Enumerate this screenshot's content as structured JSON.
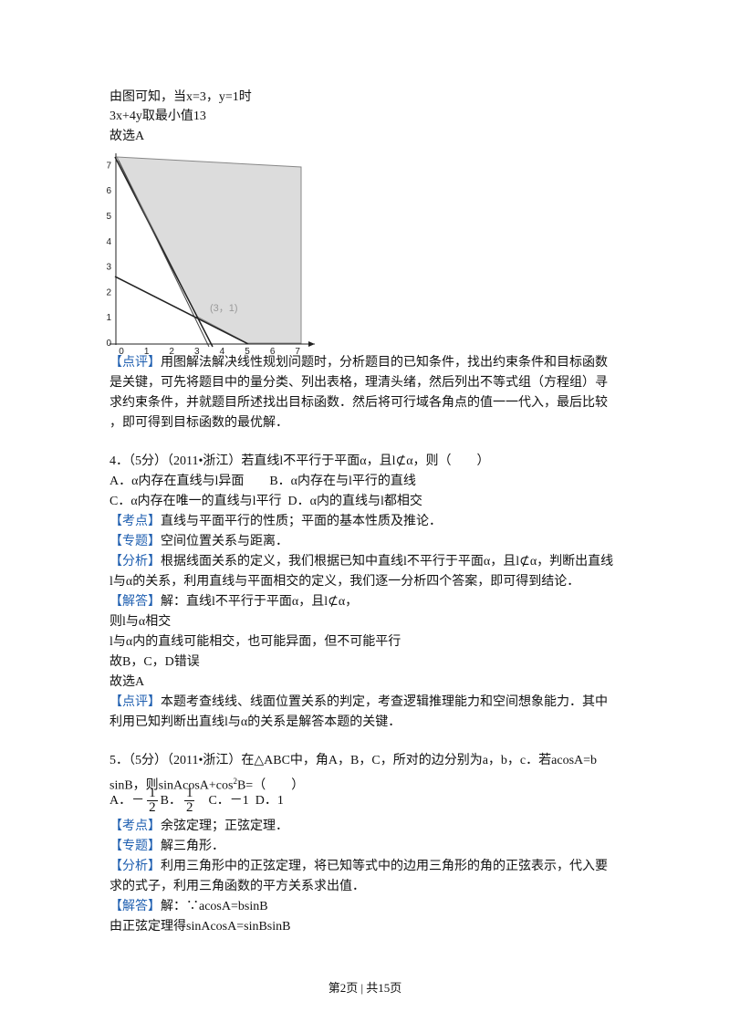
{
  "intro": [
    "由图可知，当x=3，y=1时",
    "3x+4y取最小值13",
    "故选A"
  ],
  "figure": {
    "x_ticks": [
      0,
      1,
      2,
      3,
      4,
      5,
      6,
      7
    ],
    "y_ticks": [
      0,
      1,
      2,
      3,
      4,
      5,
      6,
      7
    ],
    "point_label": "(3，1)"
  },
  "comment3": {
    "tag": "【点评】",
    "lines": [
      "用图解法解决线性规划问题时，分析题目的已知条件，找出约束条件和目标函数",
      "是关键，可先将题目中的量分类、列出表格，理清头绪，然后列出不等式组（方程组）寻",
      "求约束条件，并就题目所述找出目标函数．然后将可行域各角点的值一一代入，最后比较",
      "，即可得到目标函数的最优解．"
    ]
  },
  "q4": {
    "stem": "4．（5分）（2011•浙江）若直线l不平行于平面α，且l⊄α，则（　　）",
    "options": [
      "A．α内存在直线与l异面　　B．α内存在与l平行的直线",
      "C．α内存在唯一的直线与l平行  D．α内的直线与l都相交"
    ],
    "point": {
      "tag": "【考点】",
      "text": "直线与平面平行的性质；平面的基本性质及推论．"
    },
    "topic": {
      "tag": "【专题】",
      "text": "空间位置关系与距离．"
    },
    "analysis": {
      "tag": "【分析】",
      "lines": [
        "根据线面关系的定义，我们根据已知中直线l不平行于平面α，且l⊄α，判断出直线",
        "l与α的关系，利用直线与平面相交的定义，我们逐一分析四个答案，即可得到结论．"
      ]
    },
    "answer": {
      "tag": "【解答】",
      "lines": [
        "解：直线l不平行于平面α，且l⊄α，",
        "则l与α相交",
        "l与α内的直线可能相交，也可能异面，但不可能平行",
        "故B，C，D错误",
        "故选A"
      ]
    },
    "comment": {
      "tag": "【点评】",
      "lines": [
        "本题考查线线、线面位置关系的判定，考查逻辑推理能力和空间想象能力．其中",
        "利用已知判断出直线l与α的关系是解答本题的关键．"
      ]
    }
  },
  "q5": {
    "stem": "5．（5分）（2011•浙江）在△ABC中，角A，B，C，所对的边分别为a，b，c．若acosA=b",
    "stem2": {
      "before": "sinB，则sinAcosA+cos",
      "sup": "2",
      "after": "B=（　　）"
    },
    "options": {
      "a": "A．－",
      "a_num": "1",
      "a_den": "2",
      "b": "B．",
      "b_num": "1",
      "b_den": "2",
      "rest": "C．－1  D．1"
    },
    "point": {
      "tag": "【考点】",
      "text": "余弦定理；正弦定理．"
    },
    "topic": {
      "tag": "【专题】",
      "text": "解三角形．"
    },
    "analysis": {
      "tag": "【分析】",
      "lines": [
        "利用三角形中的正弦定理，将已知等式中的边用三角形的角的正弦表示，代入要",
        "求的式子，利用三角函数的平方关系求出值．"
      ]
    },
    "answer": {
      "tag": "【解答】",
      "lines": [
        "解：∵acosA=bsinB",
        "由正弦定理得sinAcosA=sinBsinB"
      ]
    }
  },
  "footer": "第2页 | 共15页"
}
